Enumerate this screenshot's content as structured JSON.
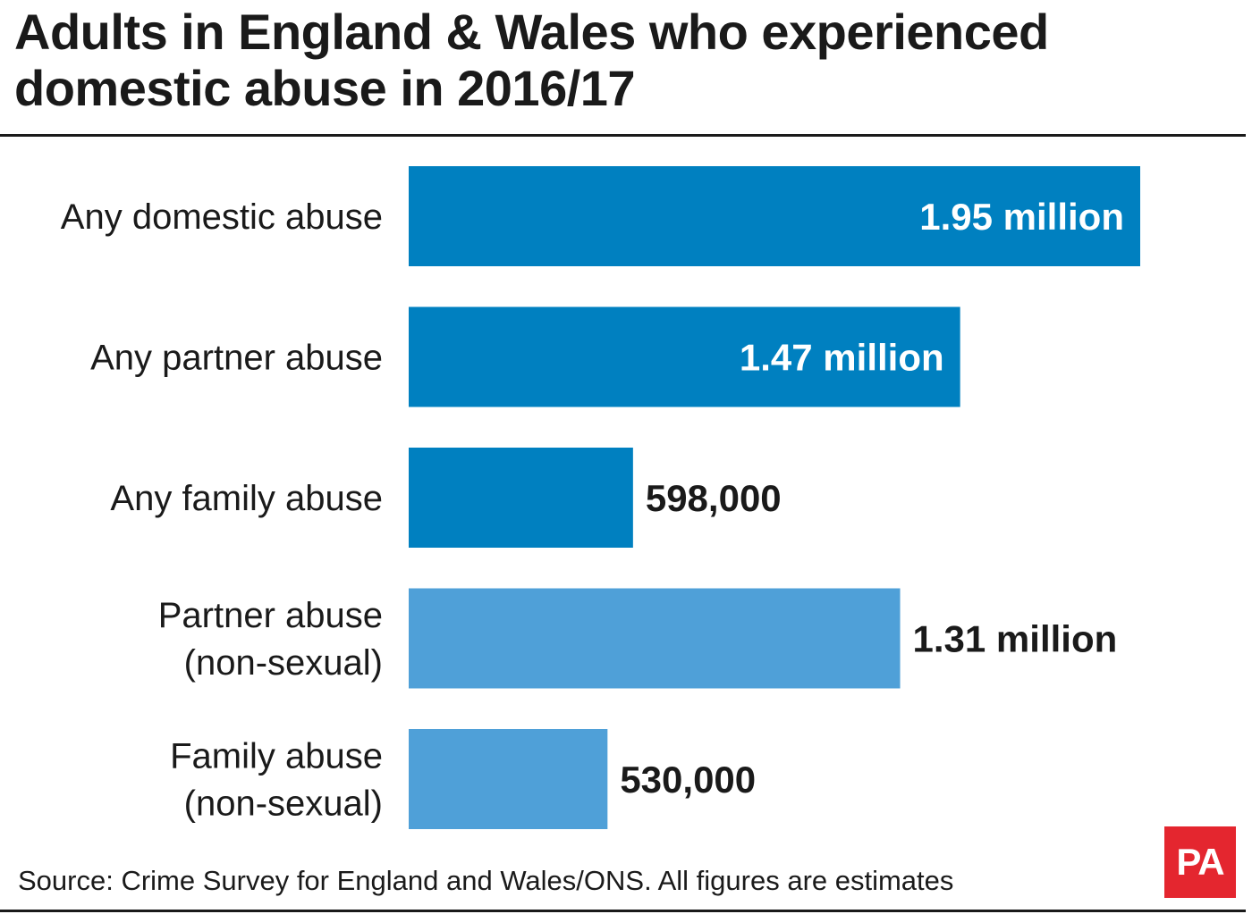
{
  "title": "Adults in England & Wales who experienced domestic abuse in 2016/17",
  "source": "Source: Crime Survey for England and Wales/ONS. All figures are estimates",
  "logo": "PA",
  "colors": {
    "dark_bar": "#0080c0",
    "light_bar": "#4fa0d8",
    "text": "#1a1a1a",
    "logo_bg": "#e4262f"
  },
  "chart_data": {
    "type": "bar",
    "orientation": "horizontal",
    "title": "Adults in England & Wales who experienced domestic abuse in 2016/17",
    "categories": [
      [
        "Any domestic abuse"
      ],
      [
        "Any partner abuse"
      ],
      [
        "Any family abuse"
      ],
      [
        "Partner abuse",
        "(non-sexual)"
      ],
      [
        "Family abuse",
        "(non-sexual)"
      ]
    ],
    "values": [
      1950000,
      1470000,
      598000,
      1310000,
      530000
    ],
    "value_labels": [
      "1.95 million",
      "1.47 million",
      "598,000",
      "1.31 million",
      "530,000"
    ],
    "bar_shades": [
      "dark",
      "dark",
      "dark",
      "light",
      "light"
    ],
    "label_inside": [
      true,
      true,
      false,
      false,
      false
    ],
    "xlim": [
      0,
      1950000
    ],
    "grid": false,
    "xlabel": "",
    "ylabel": ""
  }
}
